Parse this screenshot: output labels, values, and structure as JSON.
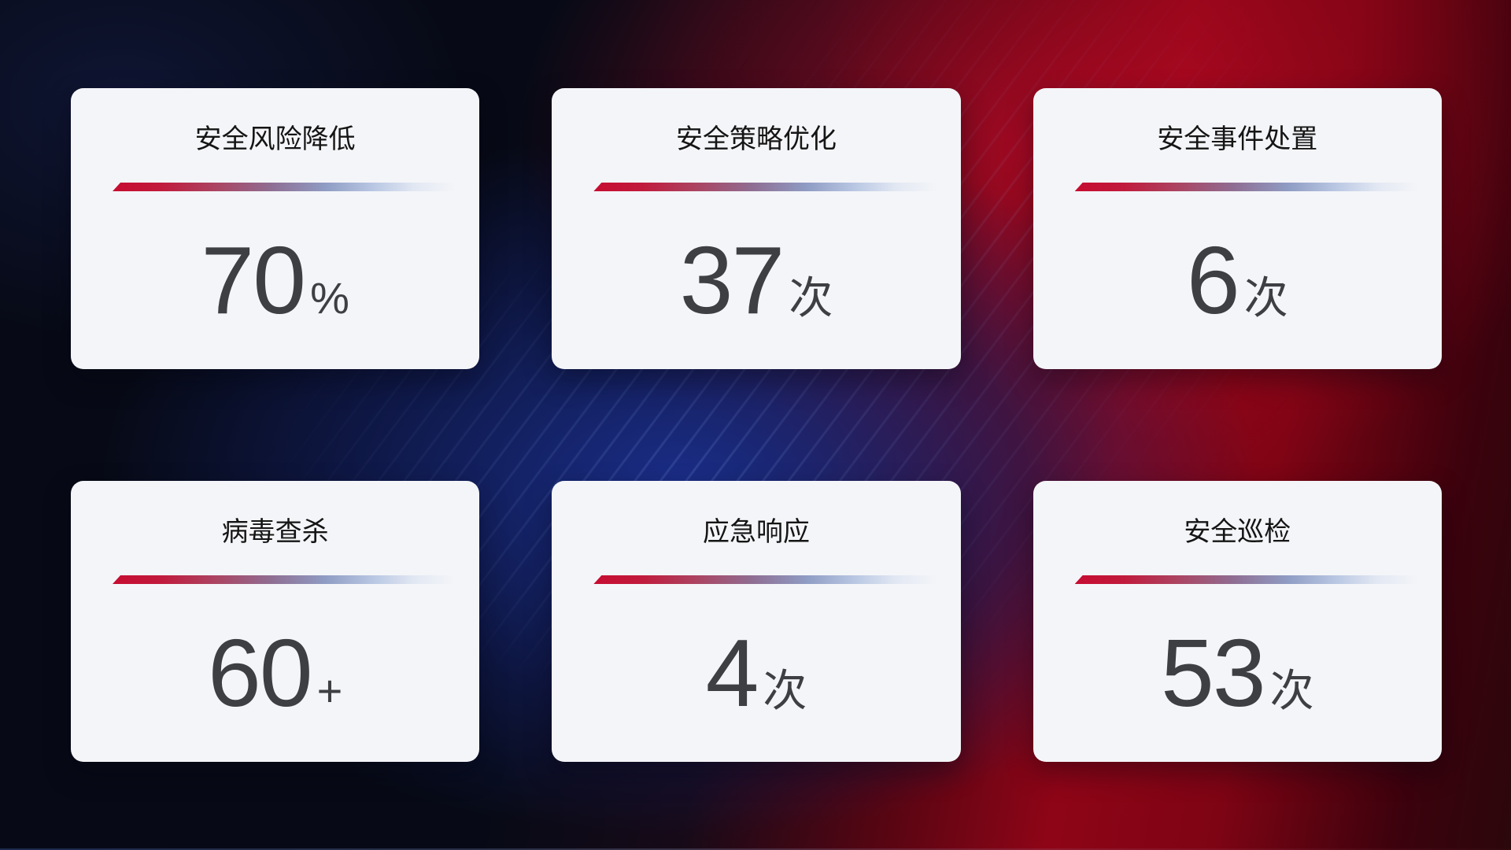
{
  "cards": [
    {
      "title": "安全风险降低",
      "value": "70",
      "unit": "%"
    },
    {
      "title": "安全策略优化",
      "value": "37",
      "unit": "次"
    },
    {
      "title": "安全事件处置",
      "value": "6",
      "unit": "次"
    },
    {
      "title": "病毒查杀",
      "value": "60",
      "unit": "+"
    },
    {
      "title": "应急响应",
      "value": "4",
      "unit": "次"
    },
    {
      "title": "安全巡检",
      "value": "53",
      "unit": "次"
    }
  ],
  "colors": {
    "card_background": "#f4f5f8",
    "title_text": "#151515",
    "value_text": "#3e3f43",
    "divider_red": "#c60c31",
    "divider_blue": "#b9c7e3",
    "background_blue": "#16246e",
    "background_red": "#8e0517"
  }
}
